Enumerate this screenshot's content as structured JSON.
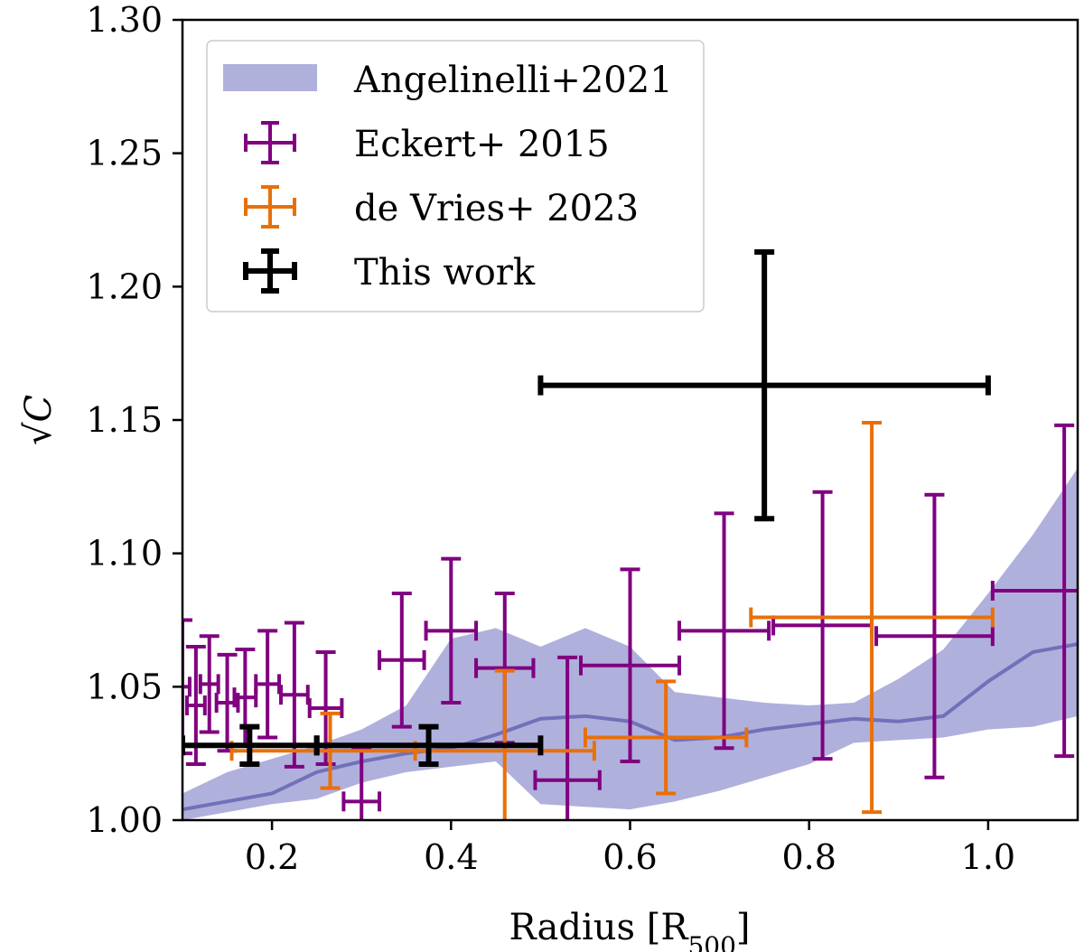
{
  "chart_data": {
    "type": "scatter",
    "title": "",
    "xlabel": "Radius [R",
    "xlabel_sub": "500",
    "xlabel_close": "]",
    "ylabel": "√C",
    "xlim": [
      0.1,
      1.1
    ],
    "ylim": [
      1.0,
      1.3
    ],
    "x_ticks": [
      0.2,
      0.4,
      0.6,
      0.8,
      1.0
    ],
    "x_tick_labels": [
      "0.2",
      "0.4",
      "0.6",
      "0.8",
      "1.0"
    ],
    "y_ticks": [
      1.0,
      1.05,
      1.1,
      1.15,
      1.2,
      1.25,
      1.3
    ],
    "y_tick_labels": [
      "1.00",
      "1.05",
      "1.10",
      "1.15",
      "1.20",
      "1.25",
      "1.30"
    ],
    "grid": false,
    "legend_position": "top-left",
    "band": {
      "name": "Angelinelli+2021",
      "color": "#b0b0dc",
      "line_color": "#6a6ab6",
      "x": [
        0.1,
        0.15,
        0.2,
        0.25,
        0.3,
        0.35,
        0.4,
        0.45,
        0.5,
        0.55,
        0.6,
        0.65,
        0.7,
        0.75,
        0.8,
        0.85,
        0.9,
        0.95,
        1.0,
        1.05,
        1.1
      ],
      "lower": [
        1.0,
        1.003,
        1.006,
        1.008,
        1.014,
        1.018,
        1.02,
        1.022,
        1.006,
        1.005,
        1.004,
        1.007,
        1.011,
        1.016,
        1.021,
        1.029,
        1.03,
        1.031,
        1.034,
        1.035,
        1.039
      ],
      "upper": [
        1.01,
        1.018,
        1.023,
        1.028,
        1.034,
        1.043,
        1.068,
        1.072,
        1.065,
        1.072,
        1.065,
        1.048,
        1.046,
        1.044,
        1.043,
        1.044,
        1.053,
        1.064,
        1.085,
        1.107,
        1.132
      ],
      "mid": [
        1.004,
        1.007,
        1.01,
        1.018,
        1.022,
        1.025,
        1.027,
        1.032,
        1.038,
        1.039,
        1.037,
        1.03,
        1.031,
        1.034,
        1.036,
        1.038,
        1.037,
        1.039,
        1.052,
        1.063,
        1.066
      ]
    },
    "series": [
      {
        "name": "Eckert+ 2015",
        "color": "#800080",
        "points": [
          {
            "x": 0.1,
            "y": 1.05,
            "xerr": 0.008,
            "yerr": 0.025
          },
          {
            "x": 0.115,
            "y": 1.043,
            "xerr": 0.01,
            "yerr": 0.022
          },
          {
            "x": 0.13,
            "y": 1.051,
            "xerr": 0.01,
            "yerr": 0.018
          },
          {
            "x": 0.15,
            "y": 1.044,
            "xerr": 0.012,
            "yerr": 0.018
          },
          {
            "x": 0.17,
            "y": 1.046,
            "xerr": 0.012,
            "yerr": 0.018
          },
          {
            "x": 0.195,
            "y": 1.051,
            "xerr": 0.013,
            "yerr": 0.02
          },
          {
            "x": 0.225,
            "y": 1.047,
            "xerr": 0.015,
            "yerr": 0.027
          },
          {
            "x": 0.26,
            "y": 1.042,
            "xerr": 0.018,
            "yerr": 0.021
          },
          {
            "x": 0.3,
            "y": 1.007,
            "xerr": 0.02,
            "yerr": 0.02
          },
          {
            "x": 0.345,
            "y": 1.06,
            "xerr": 0.025,
            "yerr": 0.025
          },
          {
            "x": 0.4,
            "y": 1.071,
            "xerr": 0.028,
            "yerr": 0.027
          },
          {
            "x": 0.46,
            "y": 1.057,
            "xerr": 0.032,
            "yerr": 0.028
          },
          {
            "x": 0.53,
            "y": 1.015,
            "xerr": 0.036,
            "yerr": 0.046
          },
          {
            "x": 0.6,
            "y": 1.058,
            "xerr": 0.055,
            "yerr": 0.036
          },
          {
            "x": 0.705,
            "y": 1.071,
            "xerr": 0.05,
            "yerr": 0.044
          },
          {
            "x": 0.815,
            "y": 1.073,
            "xerr": 0.055,
            "yerr": 0.05
          },
          {
            "x": 0.94,
            "y": 1.069,
            "xerr": 0.065,
            "yerr": 0.053
          },
          {
            "x": 1.085,
            "y": 1.086,
            "xerr": 0.08,
            "yerr": 0.062
          }
        ]
      },
      {
        "name": "de Vries+ 2023",
        "color": "#e8700a",
        "points": [
          {
            "x": 0.265,
            "y": 1.026,
            "xerr": 0.11,
            "yerr": 0.014
          },
          {
            "x": 0.46,
            "y": 1.026,
            "xerr": 0.1,
            "yerr": 0.03
          },
          {
            "x": 0.64,
            "y": 1.031,
            "xerr": 0.09,
            "yerr": 0.021
          },
          {
            "x": 0.87,
            "y": 1.076,
            "xerr": 0.135,
            "yerr": 0.073
          }
        ]
      },
      {
        "name": "This work",
        "color": "#000000",
        "points": [
          {
            "x": 0.175,
            "y": 1.028,
            "xerr": 0.075,
            "yerr": 0.007
          },
          {
            "x": 0.375,
            "y": 1.028,
            "xerr": 0.125,
            "yerr": 0.007
          },
          {
            "x": 0.75,
            "y": 1.163,
            "xerr": 0.25,
            "yerr": 0.05
          }
        ]
      }
    ]
  }
}
